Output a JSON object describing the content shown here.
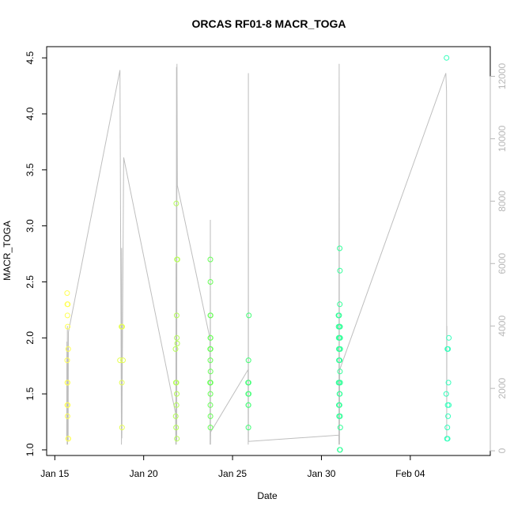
{
  "chart_data": {
    "type": "scatter",
    "title": "ORCAS RF01-8 MACR_TOGA",
    "xlabel": "Date",
    "ylabel": "MACR_TOGA",
    "xlim": [
      "2016-01-14T13:00",
      "2016-02-08T12:00"
    ],
    "ylim": [
      0.95,
      4.6
    ],
    "y2lim": [
      -150,
      12950
    ],
    "x_ticks": [
      {
        "date": "2016-01-15",
        "label": "Jan 15"
      },
      {
        "date": "2016-01-20",
        "label": "Jan 20"
      },
      {
        "date": "2016-01-25",
        "label": "Jan 25"
      },
      {
        "date": "2016-01-30",
        "label": "Jan 30"
      },
      {
        "date": "2016-02-04",
        "label": "Feb 04"
      }
    ],
    "y_ticks": [
      "1.0",
      "1.5",
      "2.0",
      "2.5",
      "3.0",
      "3.5",
      "4.0",
      "4.5"
    ],
    "y2_ticks": [
      "0",
      "2000",
      "4000",
      "6000",
      "8000",
      "10000",
      "12000"
    ],
    "colors": {
      "altitude_line": "#bebebe",
      "right_axis": "#b8b8b8",
      "flight_colors": [
        "#ffff55",
        "#e6ff55",
        "#b4ff55",
        "#66ff55",
        "#44ff77",
        "#33ff99",
        "#33ffbb",
        "#33ffcc"
      ]
    },
    "series": [
      {
        "flight": 1,
        "points": [
          [
            "2016-01-15T16:40",
            2.4
          ],
          [
            "2016-01-15T16:50",
            2.3
          ],
          [
            "2016-01-15T17:05",
            2.2
          ],
          [
            "2016-01-15T17:20",
            2.1
          ],
          [
            "2016-01-15T17:40",
            2.3
          ],
          [
            "2016-01-15T18:10",
            1.9
          ],
          [
            "2016-01-15T16:45",
            1.8
          ],
          [
            "2016-01-15T17:00",
            1.6
          ],
          [
            "2016-01-15T17:15",
            1.6
          ],
          [
            "2016-01-15T16:55",
            1.4
          ],
          [
            "2016-01-15T17:30",
            1.4
          ],
          [
            "2016-01-15T17:10",
            1.3
          ],
          [
            "2016-01-15T18:00",
            1.1
          ],
          [
            "2016-01-15T18:20",
            1.1
          ]
        ]
      },
      {
        "flight": 2,
        "points": [
          [
            "2016-01-18T16:00",
            1.8
          ],
          [
            "2016-01-18T18:00",
            2.1
          ],
          [
            "2016-01-18T19:00",
            2.1
          ],
          [
            "2016-01-18T20:00",
            1.8
          ],
          [
            "2016-01-18T18:30",
            1.6
          ],
          [
            "2016-01-18T18:45",
            1.2
          ]
        ]
      },
      {
        "flight": 3,
        "points": [
          [
            "2016-01-21T20:00",
            3.2
          ],
          [
            "2016-01-21T21:00",
            2.7
          ],
          [
            "2016-01-21T21:30",
            2.7
          ],
          [
            "2016-01-21T20:30",
            2.2
          ],
          [
            "2016-01-21T20:45",
            2.0
          ],
          [
            "2016-01-21T19:00",
            1.9
          ],
          [
            "2016-01-21T21:15",
            1.95
          ],
          [
            "2016-01-21T19:30",
            1.6
          ],
          [
            "2016-01-21T20:15",
            1.6
          ],
          [
            "2016-01-21T20:40",
            1.5
          ],
          [
            "2016-01-21T20:20",
            1.4
          ],
          [
            "2016-01-21T19:15",
            1.3
          ],
          [
            "2016-01-21T19:45",
            1.2
          ],
          [
            "2016-01-21T20:50",
            1.1
          ]
        ]
      },
      {
        "flight": 4,
        "points": [
          [
            "2016-01-23T18:00",
            2.7
          ],
          [
            "2016-01-23T18:05",
            2.5
          ],
          [
            "2016-01-23T18:00",
            2.2
          ],
          [
            "2016-01-23T18:20",
            2.2
          ],
          [
            "2016-01-23T18:00",
            2.0
          ],
          [
            "2016-01-23T18:20",
            2.0
          ],
          [
            "2016-01-23T17:50",
            1.9
          ],
          [
            "2016-01-23T18:20",
            1.9
          ],
          [
            "2016-01-23T18:00",
            1.8
          ],
          [
            "2016-01-23T18:15",
            1.7
          ],
          [
            "2016-01-23T17:40",
            1.6
          ],
          [
            "2016-01-23T18:00",
            1.6
          ],
          [
            "2016-01-23T18:20",
            1.6
          ],
          [
            "2016-01-23T18:10",
            1.5
          ],
          [
            "2016-01-23T18:00",
            1.4
          ],
          [
            "2016-01-23T18:10",
            1.3
          ],
          [
            "2016-01-23T18:05",
            1.2
          ]
        ]
      },
      {
        "flight": 5,
        "points": [
          [
            "2016-01-25T22:00",
            2.2
          ],
          [
            "2016-01-25T21:30",
            1.8
          ],
          [
            "2016-01-25T21:00",
            1.6
          ],
          [
            "2016-01-25T21:40",
            1.6
          ],
          [
            "2016-01-25T21:10",
            1.5
          ],
          [
            "2016-01-25T21:50",
            1.5
          ],
          [
            "2016-01-25T21:15",
            1.4
          ],
          [
            "2016-01-25T21:30",
            1.4
          ],
          [
            "2016-01-25T21:20",
            1.2
          ]
        ]
      },
      {
        "flight": 6,
        "points": [
          [
            "2016-01-31T00:40",
            2.8
          ],
          [
            "2016-01-31T01:00",
            2.6
          ],
          [
            "2016-01-30T23:00",
            2.2
          ],
          [
            "2016-01-31T00:50",
            2.3
          ],
          [
            "2016-01-30T23:10",
            2.1
          ],
          [
            "2016-01-31T00:00",
            2.2
          ],
          [
            "2016-01-31T00:30",
            2.1
          ],
          [
            "2016-01-31T01:10",
            2.1
          ],
          [
            "2016-01-30T23:20",
            2.0
          ],
          [
            "2016-01-31T00:20",
            2.0
          ],
          [
            "2016-01-31T01:20",
            2.0
          ],
          [
            "2016-01-30T23:30",
            1.9
          ],
          [
            "2016-01-31T00:10",
            1.9
          ],
          [
            "2016-01-31T01:30",
            1.9
          ],
          [
            "2016-01-30T23:40",
            1.8
          ],
          [
            "2016-01-31T00:40",
            1.8
          ],
          [
            "2016-01-31T01:00",
            1.7
          ],
          [
            "2016-01-30T23:10",
            1.6
          ],
          [
            "2016-01-31T00:00",
            1.6
          ],
          [
            "2016-01-31T01:20",
            1.6
          ],
          [
            "2016-01-31T00:20",
            1.5
          ],
          [
            "2016-01-31T00:50",
            1.5
          ],
          [
            "2016-01-30T23:30",
            1.4
          ],
          [
            "2016-01-31T00:30",
            1.4
          ],
          [
            "2016-01-30T23:50",
            1.3
          ],
          [
            "2016-01-31T01:10",
            1.3
          ],
          [
            "2016-01-31T01:30",
            1.2
          ],
          [
            "2016-01-31T00:45",
            1.0
          ],
          [
            "2016-01-31T01:15",
            1.0
          ]
        ]
      },
      {
        "flight": 7,
        "points": [
          [
            "2016-02-06T01:00",
            4.5
          ],
          [
            "2016-02-06T04:00",
            2.0
          ],
          [
            "2016-02-06T02:00",
            1.9
          ],
          [
            "2016-02-06T03:00",
            1.9
          ],
          [
            "2016-02-06T03:30",
            1.6
          ],
          [
            "2016-02-06T00:30",
            1.5
          ],
          [
            "2016-02-06T02:30",
            1.4
          ],
          [
            "2016-02-06T04:00",
            1.4
          ],
          [
            "2016-02-06T03:00",
            1.3
          ],
          [
            "2016-02-06T02:00",
            1.2
          ],
          [
            "2016-02-06T01:30",
            1.1
          ],
          [
            "2016-02-06T02:30",
            1.1
          ]
        ]
      }
    ],
    "altitude_series": [
      [
        "2016-01-15T16:00",
        400
      ],
      [
        "2016-01-15T16:20",
        3500
      ],
      [
        "2016-01-15T16:40",
        200
      ],
      [
        "2016-01-15T17:00",
        4000
      ],
      [
        "2016-01-15T17:20",
        200
      ],
      [
        "2016-01-15T17:40",
        3200
      ],
      [
        "2016-01-15T18:00",
        300
      ],
      [
        "2016-01-15T18:20",
        3800
      ],
      [
        "2016-01-18T16:00",
        12200
      ],
      [
        "2016-01-18T18:00",
        200
      ],
      [
        "2016-01-18T18:15",
        6500
      ],
      [
        "2016-01-18T18:30",
        400
      ],
      [
        "2016-01-18T21:00",
        9400
      ],
      [
        "2016-01-21T19:00",
        1200
      ],
      [
        "2016-01-21T19:20",
        200
      ],
      [
        "2016-01-21T19:40",
        6000
      ],
      [
        "2016-01-21T20:00",
        200
      ],
      [
        "2016-01-21T20:20",
        12300
      ],
      [
        "2016-01-21T20:40",
        300
      ],
      [
        "2016-01-21T21:00",
        12400
      ],
      [
        "2016-01-21T21:30",
        8500
      ],
      [
        "2016-01-23T17:30",
        3600
      ],
      [
        "2016-01-23T17:45",
        200
      ],
      [
        "2016-01-23T18:00",
        7400
      ],
      [
        "2016-01-23T18:15",
        200
      ],
      [
        "2016-01-23T18:30",
        600
      ],
      [
        "2016-01-25T21:00",
        2600
      ],
      [
        "2016-01-25T21:10",
        200
      ],
      [
        "2016-01-25T21:20",
        12100
      ],
      [
        "2016-01-25T21:30",
        300
      ],
      [
        "2016-01-30T23:30",
        500
      ],
      [
        "2016-01-30T23:40",
        200
      ],
      [
        "2016-01-31T00:00",
        12400
      ],
      [
        "2016-01-31T00:20",
        200
      ],
      [
        "2016-01-31T00:40",
        2600
      ],
      [
        "2016-02-06T00:00",
        12100
      ],
      [
        "2016-02-06T01:00",
        11500
      ],
      [
        "2016-02-06T01:10",
        400
      ],
      [
        "2016-02-06T01:20",
        4000
      ]
    ]
  }
}
